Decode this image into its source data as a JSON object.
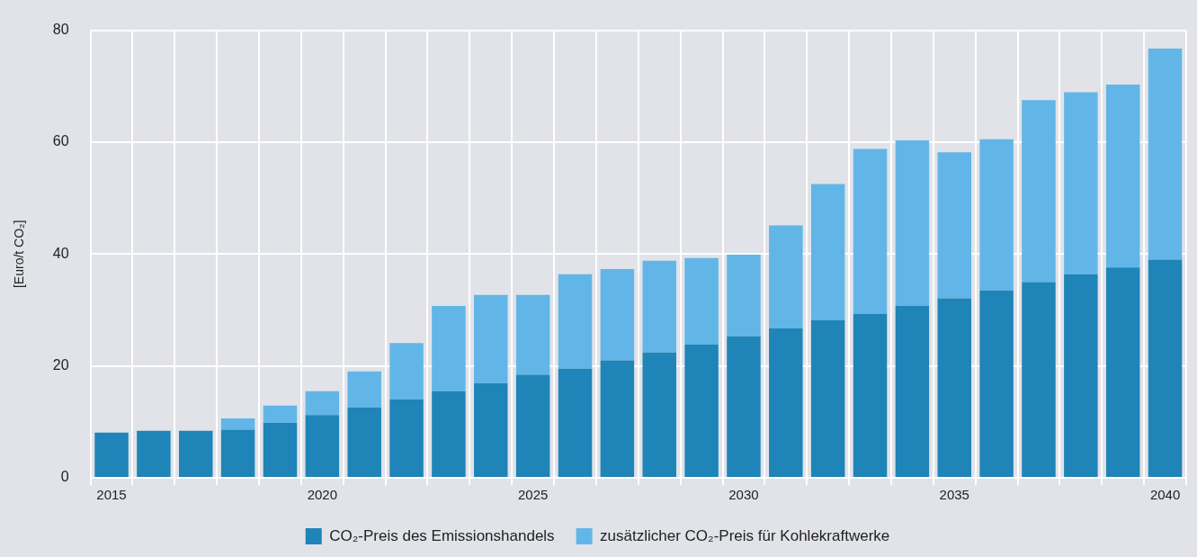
{
  "chart_data": {
    "type": "bar",
    "stacked": true,
    "ylabel": "[Euro/t CO₂]",
    "categories": [
      "2015",
      null,
      null,
      null,
      null,
      "2020",
      null,
      null,
      null,
      null,
      "2025",
      null,
      null,
      null,
      null,
      "2030",
      null,
      null,
      null,
      null,
      "2035",
      null,
      null,
      null,
      null,
      "2040"
    ],
    "series": [
      {
        "name": "CO₂-Preis des Emissionshandels",
        "color": "#1f84b8",
        "values": [
          8.1,
          8.4,
          8.4,
          8.6,
          9.8,
          11.2,
          12.6,
          14.0,
          15.5,
          16.9,
          18.4,
          19.5,
          21.0,
          22.4,
          23.8,
          25.3,
          26.7,
          28.2,
          29.3,
          30.7,
          32.1,
          33.5,
          35.0,
          36.4,
          37.6,
          39.0
        ]
      },
      {
        "name": "zusätzlicher CO₂-Preis für Kohlekraftwerke",
        "color": "#62b6e7",
        "values": [
          0,
          0,
          0,
          2.0,
          3.1,
          4.3,
          6.4,
          10.1,
          15.2,
          15.8,
          14.3,
          16.9,
          16.3,
          16.4,
          15.5,
          14.6,
          18.4,
          24.3,
          29.5,
          29.6,
          26.1,
          27.0,
          32.5,
          32.5,
          32.7,
          37.7
        ]
      }
    ],
    "ylim": [
      0,
      80
    ],
    "yticks": [
      0,
      20,
      40,
      60,
      80
    ],
    "grid": true,
    "legend": "bottom"
  }
}
